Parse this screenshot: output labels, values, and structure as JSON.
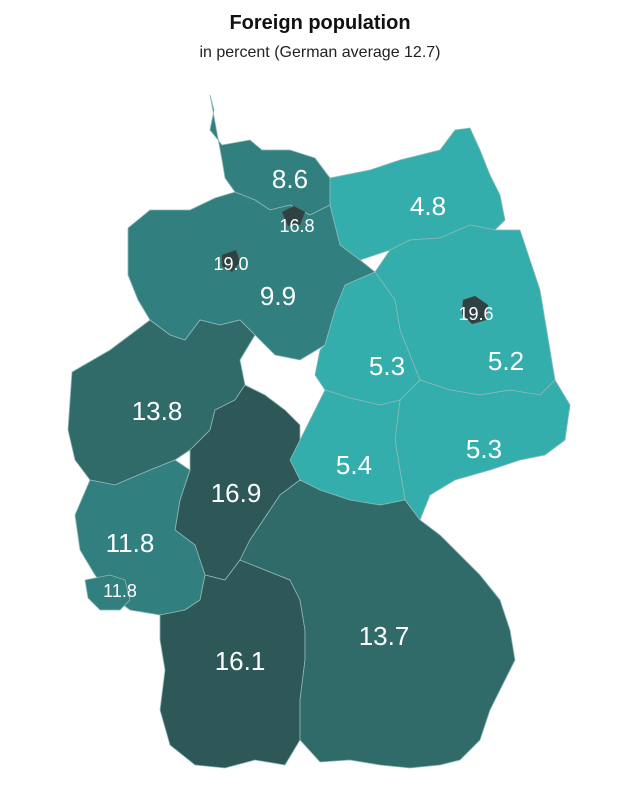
{
  "title": "Foreign population",
  "subtitle": "in percent (German average 12.7)",
  "colors": {
    "low": "#33aeac",
    "mid": "#327f7f",
    "high": "#306b6a",
    "highest": "#2e5857",
    "city": "#2e4242"
  },
  "states": {
    "schleswig_holstein": "8.6",
    "hamburg": "16.8",
    "mecklenburg": "4.8",
    "bremen": "19.0",
    "lower_saxony": "9.9",
    "berlin": "19.6",
    "brandenburg": "5.2",
    "saxony_anhalt": "5.3",
    "nrw": "13.8",
    "hesse": "16.9",
    "thuringia": "5.4",
    "saxony": "5.3",
    "rhineland_palatinate": "11.8",
    "saarland": "11.8",
    "baden_wuerttemberg": "16.1",
    "bavaria": "13.7"
  }
}
